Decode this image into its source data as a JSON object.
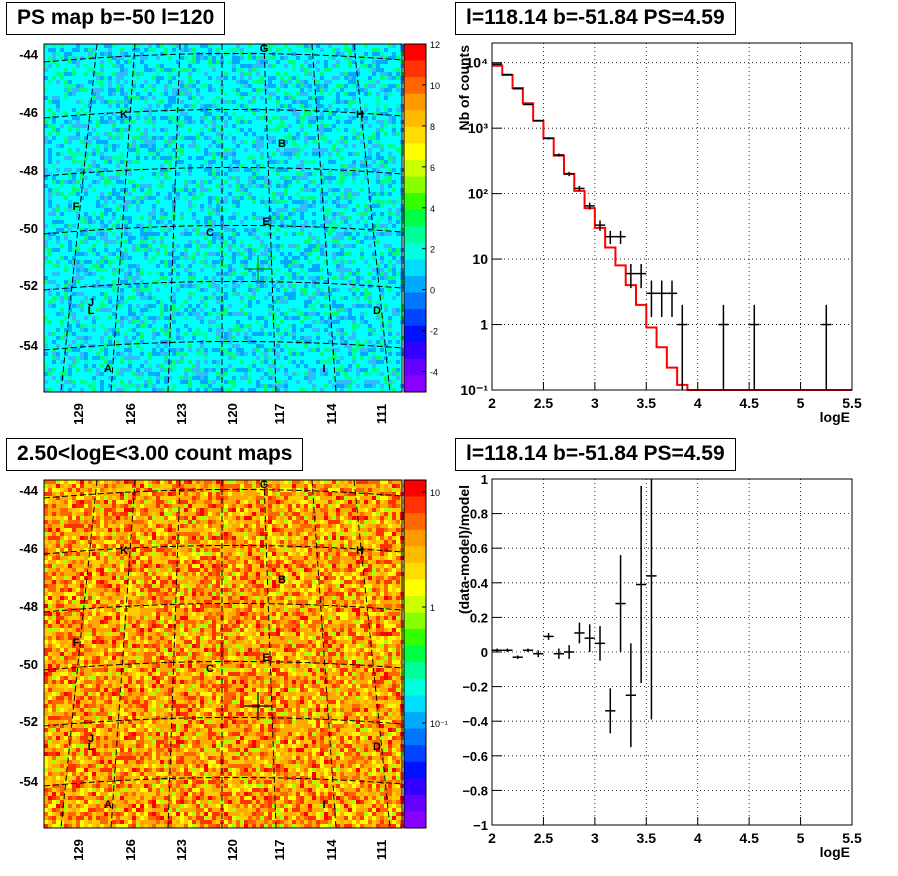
{
  "chart_data": [
    {
      "type": "heatmap",
      "title": "PS map b=-50 l=120",
      "x_tick_labels": [
        "129",
        "126",
        "123",
        "120",
        "117",
        "114",
        "111"
      ],
      "y_tick_labels": [
        "-44",
        "-46",
        "-48",
        "-50",
        "-52",
        "-54"
      ],
      "colorbar_ticks": [
        "12",
        "10",
        "8",
        "6",
        "4",
        "2",
        "0",
        "-2",
        "-4"
      ],
      "colorbar_range": [
        -5,
        12
      ],
      "source_labels": [
        "G",
        "K",
        "H",
        "B",
        "F",
        "E",
        "C",
        "J",
        "L",
        "D",
        "A",
        "I"
      ],
      "marker": "cross at l=118.14 b=-51.84"
    },
    {
      "type": "line",
      "title": "l=118.14 b=-51.84 PS=4.59",
      "xlabel": "logE",
      "ylabel": "Nb of counts",
      "x_tick_labels": [
        "2",
        "2.5",
        "3",
        "3.5",
        "4",
        "4.5",
        "5",
        "5.5"
      ],
      "y_tick_labels": [
        "10⁴",
        "10³",
        "10²",
        "10",
        "1",
        "10⁻¹"
      ],
      "xlim": [
        2,
        5.5
      ],
      "ylim": [
        0.1,
        20000
      ],
      "log_y": true,
      "grid": true,
      "series": [
        {
          "color": "#ff0000",
          "style": "step",
          "bin_edges": [
            2.0,
            2.1,
            2.2,
            2.3,
            2.4,
            2.5,
            2.6,
            2.7,
            2.8,
            2.9,
            3.0,
            3.1,
            3.2,
            3.3,
            3.4,
            3.5,
            3.6,
            3.7,
            3.8,
            3.9,
            4.0,
            4.1,
            5.5
          ],
          "values": [
            9000,
            6500,
            4100,
            2400,
            1300,
            700,
            380,
            200,
            110,
            60,
            30,
            15,
            8,
            4,
            2,
            0.9,
            0.45,
            0.22,
            0.12,
            0.1,
            0.1,
            0.1
          ]
        },
        {
          "color": "#000000",
          "style": "points",
          "points": [
            {
              "x": 2.05,
              "y": 9500,
              "lo": 9300,
              "hi": 9700
            },
            {
              "x": 2.15,
              "y": 6600,
              "lo": 6450,
              "hi": 6750
            },
            {
              "x": 2.25,
              "y": 4000,
              "lo": 3900,
              "hi": 4100
            },
            {
              "x": 2.35,
              "y": 2300,
              "lo": 2250,
              "hi": 2350
            },
            {
              "x": 2.45,
              "y": 1300,
              "lo": 1260,
              "hi": 1340
            },
            {
              "x": 2.55,
              "y": 700,
              "lo": 670,
              "hi": 730
            },
            {
              "x": 2.65,
              "y": 390,
              "lo": 370,
              "hi": 410
            },
            {
              "x": 2.75,
              "y": 200,
              "lo": 185,
              "hi": 215
            },
            {
              "x": 2.85,
              "y": 120,
              "lo": 110,
              "hi": 131
            },
            {
              "x": 2.95,
              "y": 65,
              "lo": 57,
              "hi": 73
            },
            {
              "x": 3.05,
              "y": 33,
              "lo": 27,
              "hi": 39
            },
            {
              "x": 3.15,
              "y": 22,
              "lo": 17,
              "hi": 27
            },
            {
              "x": 3.25,
              "y": 22,
              "lo": 17,
              "hi": 27
            },
            {
              "x": 3.35,
              "y": 6,
              "lo": 3.6,
              "hi": 8.4
            },
            {
              "x": 3.45,
              "y": 6,
              "lo": 3.6,
              "hi": 8.4
            },
            {
              "x": 3.55,
              "y": 3,
              "lo": 1.3,
              "hi": 4.7
            },
            {
              "x": 3.65,
              "y": 3,
              "lo": 1.3,
              "hi": 4.7
            },
            {
              "x": 3.75,
              "y": 3,
              "lo": 1.3,
              "hi": 4.7
            },
            {
              "x": 3.85,
              "y": 1,
              "lo": 0.1,
              "hi": 2
            },
            {
              "x": 4.25,
              "y": 1,
              "lo": 0.1,
              "hi": 2
            },
            {
              "x": 4.55,
              "y": 1,
              "lo": 0.1,
              "hi": 2
            },
            {
              "x": 5.25,
              "y": 1,
              "lo": 0.1,
              "hi": 2
            }
          ]
        }
      ]
    },
    {
      "type": "heatmap",
      "title": "2.50<logE<3.00 count maps",
      "x_tick_labels": [
        "129",
        "126",
        "123",
        "120",
        "117",
        "114",
        "111"
      ],
      "y_tick_labels": [
        "-44",
        "-46",
        "-48",
        "-50",
        "-52",
        "-54"
      ],
      "colorbar_ticks": [
        "10",
        "1",
        "10⁻¹"
      ],
      "log_colorbar": true,
      "source_labels": [
        "G",
        "K",
        "H",
        "B",
        "F",
        "E",
        "C",
        "J",
        "L",
        "D",
        "A",
        "I"
      ],
      "marker": "cross at l=118.14 b=-51.84"
    },
    {
      "type": "scatter",
      "title": "l=118.14 b=-51.84 PS=4.59",
      "xlabel": "logE",
      "ylabel": "(data-model)/model",
      "x_tick_labels": [
        "2",
        "2.5",
        "3",
        "3.5",
        "4",
        "4.5",
        "5",
        "5.5"
      ],
      "y_tick_labels": [
        "1",
        "0.8",
        "0.6",
        "0.4",
        "0.2",
        "0",
        "−0.2",
        "−0.4",
        "−0.6",
        "−0.8",
        "−1"
      ],
      "xlim": [
        2,
        5.5
      ],
      "ylim": [
        -1,
        1
      ],
      "grid": true,
      "points": [
        {
          "x": 2.05,
          "y": 0.01,
          "err": 0.01
        },
        {
          "x": 2.15,
          "y": 0.01,
          "err": 0.01
        },
        {
          "x": 2.25,
          "y": -0.03,
          "err": 0.01
        },
        {
          "x": 2.35,
          "y": 0.01,
          "err": 0.01
        },
        {
          "x": 2.45,
          "y": -0.01,
          "err": 0.02
        },
        {
          "x": 2.55,
          "y": 0.09,
          "err": 0.02
        },
        {
          "x": 2.65,
          "y": -0.01,
          "err": 0.03
        },
        {
          "x": 2.75,
          "y": 0.0,
          "err": 0.04
        },
        {
          "x": 2.85,
          "y": 0.11,
          "err": 0.06
        },
        {
          "x": 2.95,
          "y": 0.08,
          "err": 0.08
        },
        {
          "x": 3.05,
          "y": 0.05,
          "err": 0.1
        },
        {
          "x": 3.15,
          "y": -0.34,
          "err": 0.13
        },
        {
          "x": 3.25,
          "y": 0.28,
          "err": 0.28
        },
        {
          "x": 3.35,
          "y": -0.25,
          "err": 0.3
        },
        {
          "x": 3.45,
          "y": 0.39,
          "err": 0.57
        },
        {
          "x": 3.55,
          "y": 0.44,
          "err": 0.83
        }
      ]
    }
  ]
}
